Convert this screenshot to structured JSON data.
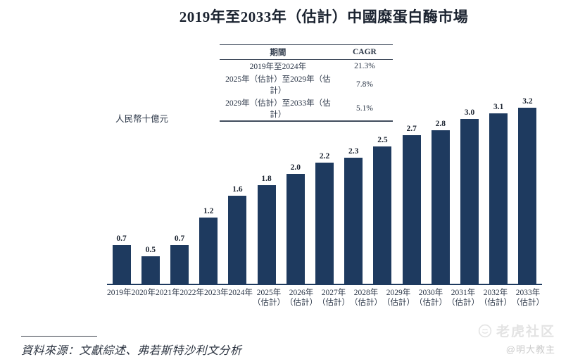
{
  "page": {
    "title": "2019年至2033年（估計）中國糜蛋白酶市場",
    "source_note": "資料來源：文獻綜述、弗若斯特沙利文分析"
  },
  "cagr_table": {
    "period_header": "期間",
    "cagr_header": "CAGR",
    "rows": [
      {
        "period": "2019年至2024年",
        "cagr": "21.3%"
      },
      {
        "period": "2025年（估計）至2029年（估計）",
        "cagr": "7.8%"
      },
      {
        "period": "2029年（估計）至2033年（估計）",
        "cagr": "5.1%"
      }
    ]
  },
  "chart_data": {
    "type": "bar",
    "title": "2019年至2033年（估計）中國糜蛋白酶市場",
    "ylabel": "人民幣十億元",
    "xlabel": "",
    "categories": [
      "2019年",
      "2020年",
      "2021年",
      "2022年",
      "2023年",
      "2024年",
      "2025年（估計）",
      "2026年（估計）",
      "2027年（估計）",
      "2028年（估計）",
      "2029年（估計）",
      "2030年（估計）",
      "2031年（估計）",
      "2032年（估計）",
      "2033年（估計）"
    ],
    "values": [
      0.7,
      0.5,
      0.7,
      1.2,
      1.6,
      1.8,
      2.0,
      2.2,
      2.3,
      2.5,
      2.7,
      2.8,
      3.0,
      3.1,
      3.2
    ],
    "bar_color": "#1e3a5f",
    "ylim": [
      0,
      3.4
    ],
    "grid": false,
    "legend": "none",
    "estimate_note": "（估計）"
  },
  "watermark": {
    "brand": "老虎社区",
    "handle": "@明大教主",
    "icon": "tiger-circle-icon",
    "color": "#e3e3e3",
    "handle_color": "#cbcbcb"
  }
}
